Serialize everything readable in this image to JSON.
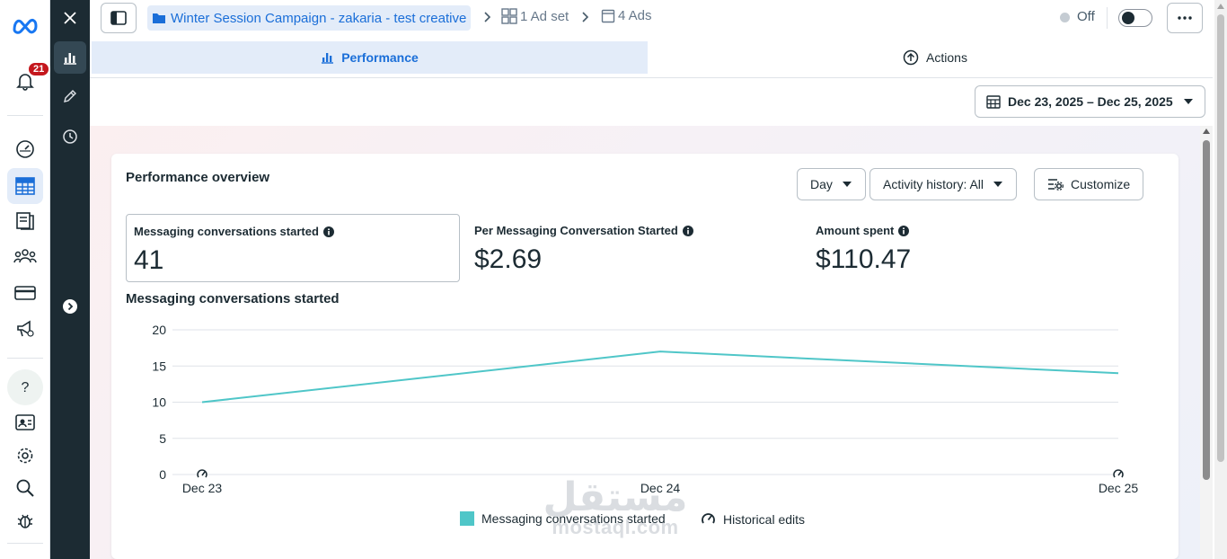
{
  "global_nav": {
    "notification_count": "21",
    "items": [
      {
        "icon": "meta-logo-icon"
      },
      {
        "icon": "notifications-icon"
      },
      {
        "icon": "dashboard-icon"
      },
      {
        "icon": "ads-manager-table-icon",
        "active": true
      },
      {
        "icon": "pages-icon"
      },
      {
        "icon": "audiences-icon"
      },
      {
        "icon": "billing-icon"
      },
      {
        "icon": "campaigns-megaphone-icon"
      },
      {
        "icon": "help-icon"
      },
      {
        "icon": "account-overview-icon"
      },
      {
        "icon": "settings-icon"
      },
      {
        "icon": "search-icon"
      },
      {
        "icon": "report-bug-icon"
      }
    ]
  },
  "side_panel": {
    "items": [
      {
        "icon": "close-icon"
      },
      {
        "icon": "performance-chart-icon",
        "active": true
      },
      {
        "icon": "edit-pencil-icon"
      },
      {
        "icon": "history-clock-icon"
      },
      {
        "icon": "expand-chevron-icon"
      }
    ]
  },
  "breadcrumb": {
    "campaign": "Winter Session Campaign - zakaria - test creative",
    "adset": "1 Ad set",
    "ads": "4 Ads"
  },
  "status": {
    "label": "Off"
  },
  "tabs": {
    "performance": "Performance",
    "actions": "Actions"
  },
  "date_range": "Dec 23, 2025 – Dec 25, 2025",
  "overview": {
    "title": "Performance overview",
    "controls": {
      "granularity": "Day",
      "activity_history": "Activity history: All",
      "customize": "Customize"
    },
    "metrics": [
      {
        "label": "Messaging conversations started",
        "value": "41"
      },
      {
        "label": "Per Messaging Conversation Started",
        "value": "$2.69"
      },
      {
        "label": "Amount spent",
        "value": "$110.47"
      }
    ],
    "chart_title": "Messaging conversations started"
  },
  "chart_data": {
    "type": "line",
    "title": "Messaging conversations started",
    "x": [
      "Dec 23",
      "Dec 24",
      "Dec 25"
    ],
    "series": [
      {
        "name": "Messaging conversations started",
        "values": [
          10,
          17,
          14
        ],
        "color": "#4fc6c8"
      }
    ],
    "ylim": [
      0,
      20
    ],
    "yticks": [
      0,
      5,
      10,
      15,
      20
    ],
    "historical_edits_at": [
      "Dec 23",
      "Dec 25"
    ],
    "grid": true,
    "legend_position": "bottom"
  },
  "legend": {
    "series_label": "Messaging conversations started",
    "edits_label": "Historical edits"
  },
  "watermark": {
    "arabic": "مستقل",
    "latin": "mostaql.com"
  }
}
